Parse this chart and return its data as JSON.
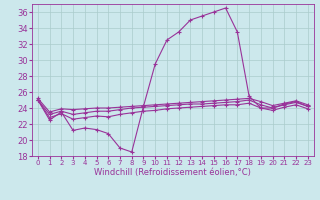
{
  "title": "",
  "xlabel": "Windchill (Refroidissement éolien,°C)",
  "background_color": "#cce8ec",
  "grid_color": "#aacccc",
  "line_color": "#993399",
  "xlim": [
    -0.5,
    23.5
  ],
  "ylim": [
    18,
    37
  ],
  "yticks": [
    18,
    20,
    22,
    24,
    26,
    28,
    30,
    32,
    34,
    36
  ],
  "xticks": [
    0,
    1,
    2,
    3,
    4,
    5,
    6,
    7,
    8,
    9,
    10,
    11,
    12,
    13,
    14,
    15,
    16,
    17,
    18,
    19,
    20,
    21,
    22,
    23
  ],
  "series1_x": [
    0,
    1,
    2,
    3,
    4,
    5,
    6,
    7,
    8,
    9,
    10,
    11,
    12,
    13,
    14,
    15,
    16,
    17,
    18,
    19,
    20,
    21,
    22,
    23
  ],
  "series1_y": [
    25.0,
    22.5,
    23.5,
    21.2,
    21.5,
    21.3,
    20.8,
    19.0,
    18.5,
    24.2,
    29.5,
    32.5,
    33.5,
    35.0,
    35.5,
    36.0,
    36.5,
    33.5,
    25.5,
    24.0,
    24.0,
    24.5,
    24.8,
    24.2
  ],
  "series2_x": [
    0,
    1,
    2,
    3,
    4,
    5,
    6,
    7,
    8,
    9,
    10,
    11,
    12,
    13,
    14,
    15,
    16,
    17,
    18,
    19,
    20,
    21,
    22,
    23
  ],
  "series2_y": [
    25.2,
    23.5,
    23.9,
    23.8,
    23.9,
    24.0,
    24.0,
    24.1,
    24.2,
    24.3,
    24.4,
    24.5,
    24.6,
    24.7,
    24.8,
    24.9,
    25.0,
    25.1,
    25.2,
    24.8,
    24.3,
    24.6,
    24.9,
    24.4
  ],
  "series3_x": [
    0,
    1,
    2,
    3,
    4,
    5,
    6,
    7,
    8,
    9,
    10,
    11,
    12,
    13,
    14,
    15,
    16,
    17,
    18,
    19,
    20,
    21,
    22,
    23
  ],
  "series3_y": [
    25.0,
    23.2,
    23.6,
    23.2,
    23.4,
    23.6,
    23.6,
    23.8,
    24.0,
    24.1,
    24.2,
    24.3,
    24.4,
    24.5,
    24.5,
    24.6,
    24.7,
    24.8,
    25.0,
    24.4,
    24.0,
    24.4,
    24.7,
    24.2
  ],
  "series4_x": [
    0,
    1,
    2,
    3,
    4,
    5,
    6,
    7,
    8,
    9,
    10,
    11,
    12,
    13,
    14,
    15,
    16,
    17,
    18,
    19,
    20,
    21,
    22,
    23
  ],
  "series4_y": [
    25.0,
    22.8,
    23.3,
    22.6,
    22.8,
    23.0,
    22.9,
    23.2,
    23.4,
    23.6,
    23.7,
    23.9,
    24.0,
    24.1,
    24.2,
    24.3,
    24.4,
    24.4,
    24.6,
    24.0,
    23.7,
    24.1,
    24.4,
    23.9
  ]
}
